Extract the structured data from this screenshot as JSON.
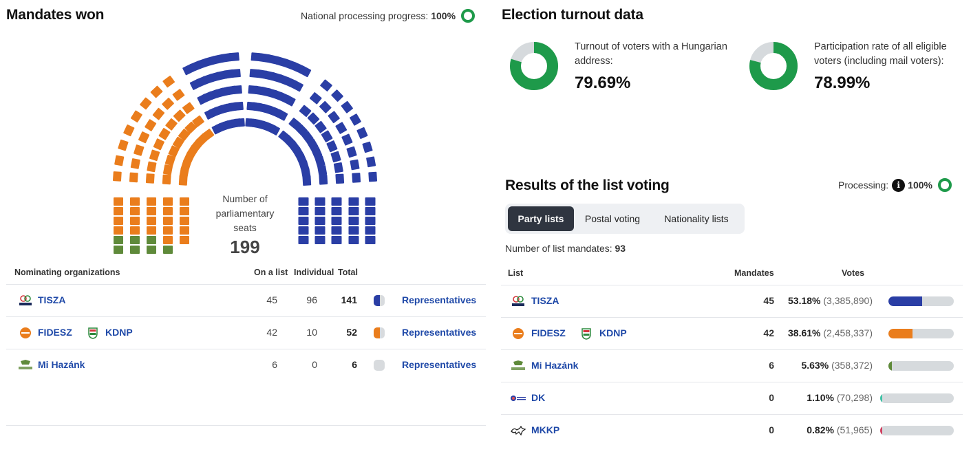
{
  "colors": {
    "tisza": "#2a3ea5",
    "fidesz": "#ea7d1c",
    "mihazank": "#5f8a3a",
    "dk": "#3fc2a6",
    "mkkp": "#d04060",
    "accent": "#1f49a8",
    "progress": "#1e9a4a"
  },
  "mandates": {
    "title": "Mandates won",
    "progress_label": "National processing progress:",
    "progress_value": "100%",
    "center_label": "Number of parliamentary seats",
    "total_seats": "199",
    "seats": {
      "fidesz_kdnp": 52,
      "mihazank": 6,
      "tisza": 141
    },
    "headers": {
      "org": "Nominating organizations",
      "list": "On a list",
      "individual": "Individual",
      "total": "Total"
    },
    "rows": [
      {
        "names": [
          "TISZA"
        ],
        "logos": [
          "tisza-logo"
        ],
        "list": "45",
        "individual": "96",
        "total": "141",
        "link": "Representatives"
      },
      {
        "names": [
          "FIDESZ",
          "KDNP"
        ],
        "logos": [
          "fidesz-logo",
          "kdnp-logo"
        ],
        "list": "42",
        "individual": "10",
        "total": "52",
        "link": "Representatives"
      },
      {
        "names": [
          "Mi Hazánk"
        ],
        "logos": [
          "mihazank-logo"
        ],
        "list": "6",
        "individual": "0",
        "total": "6",
        "link": "Representatives"
      }
    ]
  },
  "turnout": {
    "title": "Election turnout data",
    "items": [
      {
        "label": "Turnout of voters with a Hungarian address:",
        "value": "79.69%",
        "fraction": 0.7969
      },
      {
        "label": "Participation rate of all eligible voters (including mail voters):",
        "value": "78.99%",
        "fraction": 0.7899
      }
    ]
  },
  "list_voting": {
    "title": "Results of the list voting",
    "processing_label": "Processing:",
    "processing_value": "100%",
    "tabs": [
      "Party lists",
      "Postal voting",
      "Nationality lists"
    ],
    "active_tab": 0,
    "mandates_label": "Number of list mandates:",
    "mandates_value": "93",
    "headers": {
      "list": "List",
      "mandates": "Mandates",
      "votes": "Votes"
    },
    "rows": [
      {
        "names": [
          "TISZA"
        ],
        "logos": [
          "tisza-logo"
        ],
        "mandates": "45",
        "pct": "53.18%",
        "votes": "(3,385,890)",
        "share": 0.5318,
        "color": "#2a3ea5"
      },
      {
        "names": [
          "FIDESZ",
          "KDNP"
        ],
        "logos": [
          "fidesz-logo",
          "kdnp-logo"
        ],
        "mandates": "42",
        "pct": "38.61%",
        "votes": "(2,458,337)",
        "share": 0.3861,
        "color": "#ea7d1c"
      },
      {
        "names": [
          "Mi Hazánk"
        ],
        "logos": [
          "mihazank-logo"
        ],
        "mandates": "6",
        "pct": "5.63%",
        "votes": "(358,372)",
        "share": 0.0563,
        "color": "#5f8a3a"
      },
      {
        "names": [
          "DK"
        ],
        "logos": [
          "dk-logo"
        ],
        "mandates": "0",
        "pct": "1.10%",
        "votes": "(70,298)",
        "share": 0.011,
        "color": "#3fc2a6"
      },
      {
        "names": [
          "MKKP"
        ],
        "logos": [
          "mkkp-logo"
        ],
        "mandates": "0",
        "pct": "0.82%",
        "votes": "(51,965)",
        "share": 0.0082,
        "color": "#d04060"
      }
    ]
  }
}
